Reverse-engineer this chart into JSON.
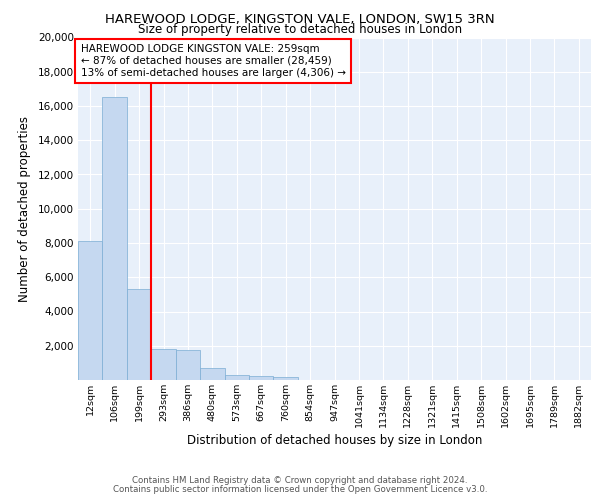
{
  "title1": "HAREWOOD LODGE, KINGSTON VALE, LONDON, SW15 3RN",
  "title2": "Size of property relative to detached houses in London",
  "xlabel": "Distribution of detached houses by size in London",
  "ylabel": "Number of detached properties",
  "categories": [
    "12sqm",
    "106sqm",
    "199sqm",
    "293sqm",
    "386sqm",
    "480sqm",
    "573sqm",
    "667sqm",
    "760sqm",
    "854sqm",
    "947sqm",
    "1041sqm",
    "1134sqm",
    "1228sqm",
    "1321sqm",
    "1415sqm",
    "1508sqm",
    "1602sqm",
    "1695sqm",
    "1789sqm",
    "1882sqm"
  ],
  "values": [
    8100,
    16500,
    5300,
    1800,
    1750,
    700,
    300,
    230,
    200,
    0,
    0,
    0,
    0,
    0,
    0,
    0,
    0,
    0,
    0,
    0,
    0
  ],
  "bar_color": "#c5d8f0",
  "bar_edge_color": "#7badd4",
  "background_color": "#e8f0fa",
  "grid_color": "#ffffff",
  "red_line_x": 2.5,
  "annotation_title": "HAREWOOD LODGE KINGSTON VALE: 259sqm",
  "annotation_line1": "← 87% of detached houses are smaller (28,459)",
  "annotation_line2": "13% of semi-detached houses are larger (4,306) →",
  "footer1": "Contains HM Land Registry data © Crown copyright and database right 2024.",
  "footer2": "Contains public sector information licensed under the Open Government Licence v3.0.",
  "ylim": [
    0,
    20000
  ],
  "yticks": [
    0,
    2000,
    4000,
    6000,
    8000,
    10000,
    12000,
    14000,
    16000,
    18000,
    20000
  ]
}
